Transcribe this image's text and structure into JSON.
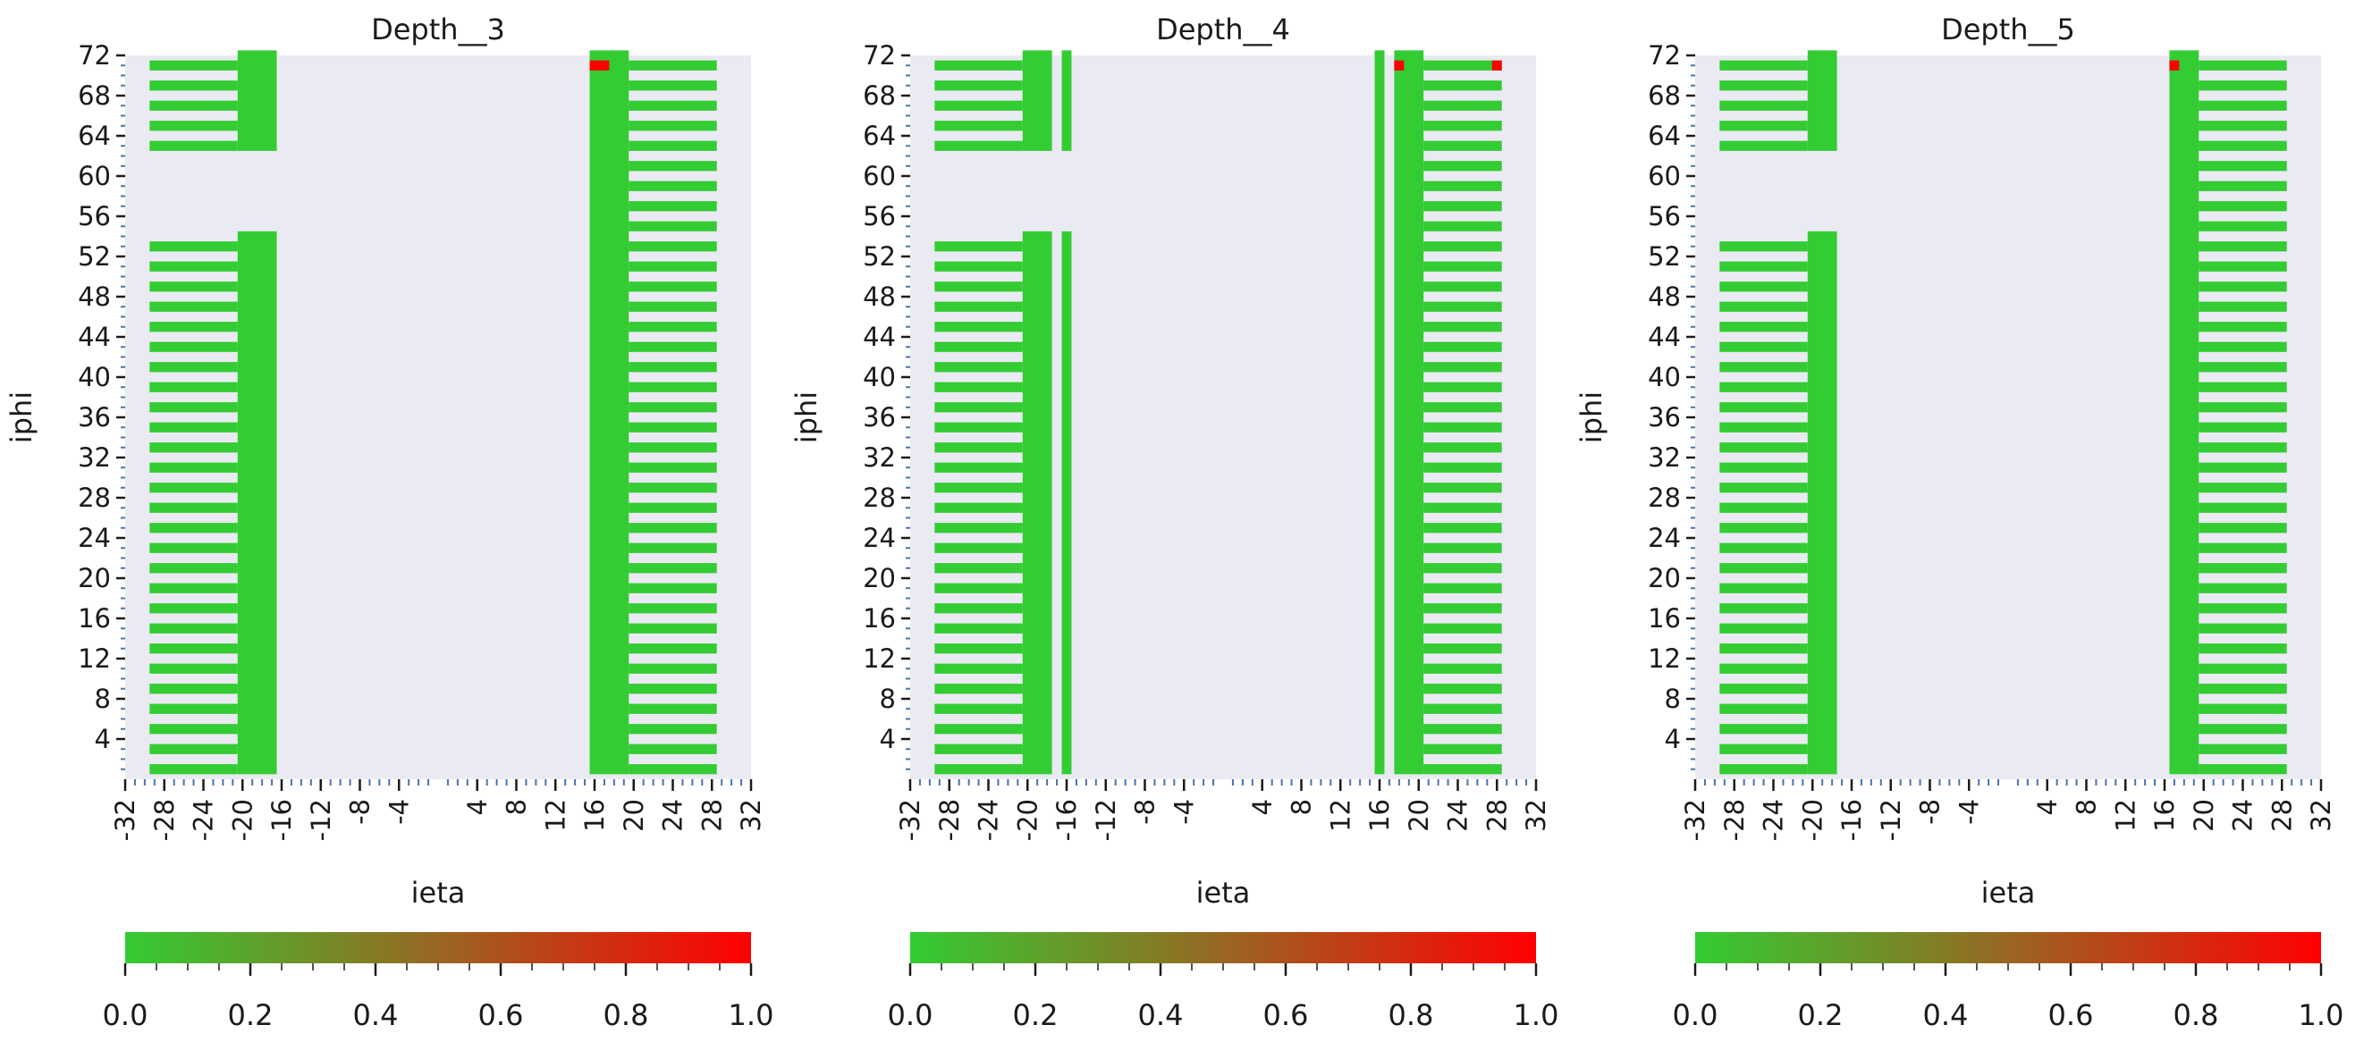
{
  "chart_data": [
    {
      "type": "heatmap",
      "title": "Depth__3",
      "xlabel": "ieta",
      "ylabel": "iphi",
      "xlim": [
        -32,
        32
      ],
      "ylim": [
        0,
        72
      ],
      "x_tick_labels": [
        "-32",
        "-28",
        "-24",
        "-20",
        "-16",
        "-12",
        "-8",
        "-4",
        "4",
        "8",
        "12",
        "16",
        "20",
        "24",
        "28",
        "32"
      ],
      "y_tick_labels": [
        "72",
        "68",
        "64",
        "60",
        "56",
        "52",
        "48",
        "44",
        "40",
        "36",
        "32",
        "28",
        "24",
        "20",
        "16",
        "12",
        "8",
        "4"
      ],
      "background": "#eaeaf2",
      "colormap": {
        "low": "#33cc33",
        "high": "#ff0000",
        "range": [
          0,
          1
        ]
      },
      "colorbar_ticks": [
        "0.0",
        "0.2",
        "0.4",
        "0.6",
        "0.8",
        "1.0"
      ],
      "blocks": [
        {
          "ieta": [
            -29,
            -21
          ],
          "iphi": [
            1,
            54
          ],
          "pattern": "odd",
          "value": 0
        },
        {
          "ieta": [
            -29,
            -21
          ],
          "iphi": [
            63,
            72
          ],
          "pattern": "odd",
          "value": 0
        },
        {
          "ieta": [
            -20,
            -17
          ],
          "iphi": [
            1,
            54
          ],
          "pattern": "all",
          "value": 0
        },
        {
          "ieta": [
            -20,
            -17
          ],
          "iphi": [
            63,
            72
          ],
          "pattern": "all",
          "value": 0
        },
        {
          "ieta": [
            16,
            19
          ],
          "iphi": [
            1,
            72
          ],
          "pattern": "all",
          "value": 0
        },
        {
          "ieta": [
            20,
            28
          ],
          "iphi": [
            1,
            72
          ],
          "pattern": "odd",
          "value": 0
        }
      ],
      "hot_cells": [
        {
          "ieta": 16,
          "iphi": 71,
          "value": 1.0
        },
        {
          "ieta": 17,
          "iphi": 71,
          "value": 1.0
        }
      ]
    },
    {
      "type": "heatmap",
      "title": "Depth__4",
      "xlabel": "ieta",
      "ylabel": "iphi",
      "xlim": [
        -32,
        32
      ],
      "ylim": [
        0,
        72
      ],
      "x_tick_labels": [
        "-32",
        "-28",
        "-24",
        "-20",
        "-16",
        "-12",
        "-8",
        "-4",
        "4",
        "8",
        "12",
        "16",
        "20",
        "24",
        "28",
        "32"
      ],
      "y_tick_labels": [
        "72",
        "68",
        "64",
        "60",
        "56",
        "52",
        "48",
        "44",
        "40",
        "36",
        "32",
        "28",
        "24",
        "20",
        "16",
        "12",
        "8",
        "4"
      ],
      "background": "#eaeaf2",
      "colormap": {
        "low": "#33cc33",
        "high": "#ff0000",
        "range": [
          0,
          1
        ]
      },
      "colorbar_ticks": [
        "0.0",
        "0.2",
        "0.4",
        "0.6",
        "0.8",
        "1.0"
      ],
      "blocks": [
        {
          "ieta": [
            -29,
            -21
          ],
          "iphi": [
            1,
            54
          ],
          "pattern": "odd",
          "value": 0
        },
        {
          "ieta": [
            -29,
            -21
          ],
          "iphi": [
            63,
            72
          ],
          "pattern": "odd",
          "value": 0
        },
        {
          "ieta": [
            -20,
            -18
          ],
          "iphi": [
            1,
            54
          ],
          "pattern": "all",
          "value": 0
        },
        {
          "ieta": [
            -20,
            -18
          ],
          "iphi": [
            63,
            72
          ],
          "pattern": "all",
          "value": 0
        },
        {
          "ieta": [
            -16,
            -16
          ],
          "iphi": [
            1,
            54
          ],
          "pattern": "all",
          "value": 0
        },
        {
          "ieta": [
            -16,
            -16
          ],
          "iphi": [
            63,
            72
          ],
          "pattern": "all",
          "value": 0
        },
        {
          "ieta": [
            16,
            16
          ],
          "iphi": [
            1,
            72
          ],
          "pattern": "all",
          "value": 0
        },
        {
          "ieta": [
            18,
            20
          ],
          "iphi": [
            1,
            72
          ],
          "pattern": "all",
          "value": 0
        },
        {
          "ieta": [
            21,
            28
          ],
          "iphi": [
            1,
            72
          ],
          "pattern": "odd",
          "value": 0
        }
      ],
      "hot_cells": [
        {
          "ieta": 18,
          "iphi": 71,
          "value": 1.0
        },
        {
          "ieta": 28,
          "iphi": 71,
          "value": 1.0
        }
      ]
    },
    {
      "type": "heatmap",
      "title": "Depth__5",
      "xlabel": "ieta",
      "ylabel": "iphi",
      "xlim": [
        -32,
        32
      ],
      "ylim": [
        0,
        72
      ],
      "x_tick_labels": [
        "-32",
        "-28",
        "-24",
        "-20",
        "-16",
        "-12",
        "-8",
        "-4",
        "4",
        "8",
        "12",
        "16",
        "20",
        "24",
        "28",
        "32"
      ],
      "y_tick_labels": [
        "72",
        "68",
        "64",
        "60",
        "56",
        "52",
        "48",
        "44",
        "40",
        "36",
        "32",
        "28",
        "24",
        "20",
        "16",
        "12",
        "8",
        "4"
      ],
      "background": "#eaeaf2",
      "colormap": {
        "low": "#33cc33",
        "high": "#ff0000",
        "range": [
          0,
          1
        ]
      },
      "colorbar_ticks": [
        "0.0",
        "0.2",
        "0.4",
        "0.6",
        "0.8",
        "1.0"
      ],
      "blocks": [
        {
          "ieta": [
            -29,
            -21
          ],
          "iphi": [
            1,
            54
          ],
          "pattern": "odd",
          "value": 0
        },
        {
          "ieta": [
            -29,
            -21
          ],
          "iphi": [
            63,
            72
          ],
          "pattern": "odd",
          "value": 0
        },
        {
          "ieta": [
            -20,
            -18
          ],
          "iphi": [
            1,
            54
          ],
          "pattern": "all",
          "value": 0
        },
        {
          "ieta": [
            -20,
            -18
          ],
          "iphi": [
            63,
            72
          ],
          "pattern": "all",
          "value": 0
        },
        {
          "ieta": [
            17,
            19
          ],
          "iphi": [
            1,
            72
          ],
          "pattern": "all",
          "value": 0
        },
        {
          "ieta": [
            20,
            28
          ],
          "iphi": [
            1,
            72
          ],
          "pattern": "odd",
          "value": 0
        }
      ],
      "hot_cells": [
        {
          "ieta": 17,
          "iphi": 71,
          "value": 1.0
        }
      ]
    }
  ]
}
